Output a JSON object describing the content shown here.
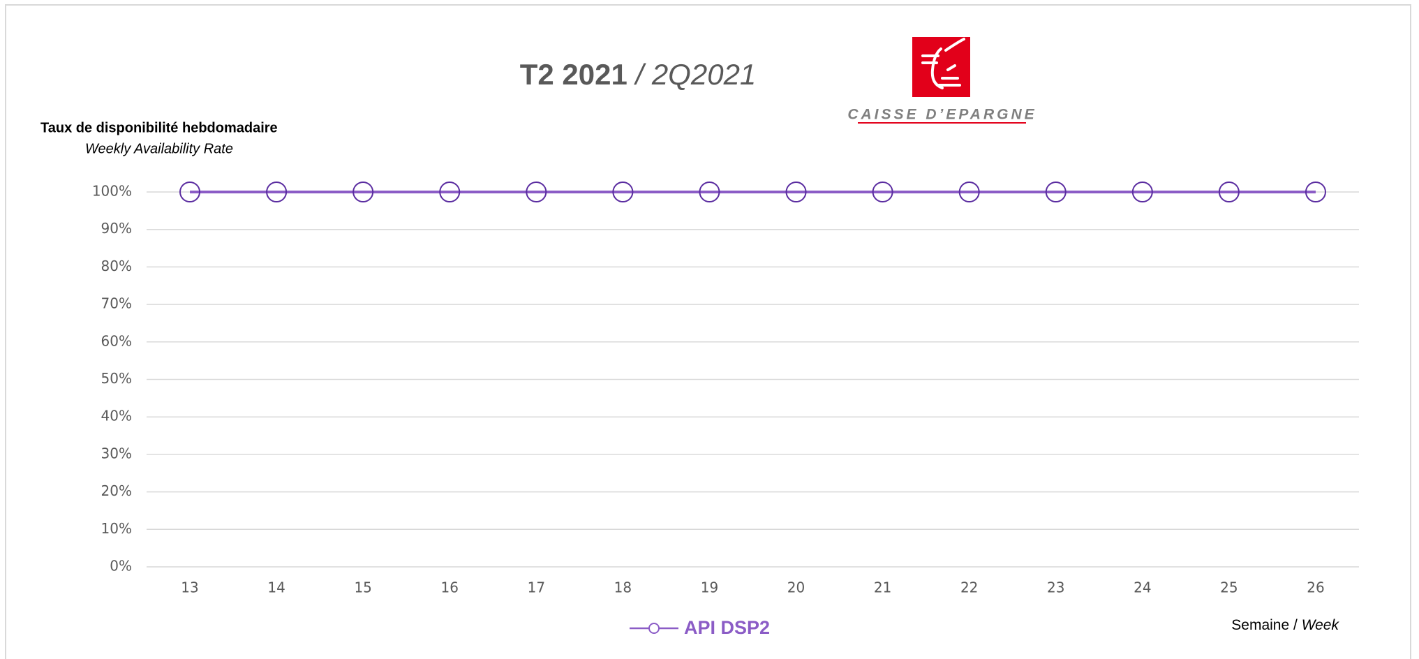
{
  "chart_data": {
    "type": "line",
    "title": "T2 2021",
    "title_en": "/ 2Q2021",
    "logo_text": "CAISSE D’EPARGNE",
    "y_label": "Taux de disponibilité hebdomadaire",
    "y_label_en": "Weekly Availability Rate",
    "x_label": "Semaine /",
    "x_label_en": "Week",
    "categories": [
      "13",
      "14",
      "15",
      "16",
      "17",
      "18",
      "19",
      "20",
      "21",
      "22",
      "23",
      "24",
      "25",
      "26"
    ],
    "series": [
      {
        "name": "API DSP2",
        "color": "#8b5cc6",
        "marker_color": "#5a2ca0",
        "values": [
          100,
          100,
          100,
          100,
          100,
          100,
          100,
          100,
          100,
          100,
          100,
          100,
          100,
          100
        ]
      }
    ],
    "ylim": [
      0,
      100
    ],
    "yticks": [
      {
        "value": 0,
        "label": "0%"
      },
      {
        "value": 10,
        "label": "10%"
      },
      {
        "value": 20,
        "label": "20%"
      },
      {
        "value": 30,
        "label": "30%"
      },
      {
        "value": 40,
        "label": "40%"
      },
      {
        "value": 50,
        "label": "50%"
      },
      {
        "value": 60,
        "label": "60%"
      },
      {
        "value": 70,
        "label": "70%"
      },
      {
        "value": 80,
        "label": "80%"
      },
      {
        "value": 90,
        "label": "90%"
      },
      {
        "value": 100,
        "label": "100%"
      }
    ],
    "grid": true,
    "legend": "bottom"
  }
}
